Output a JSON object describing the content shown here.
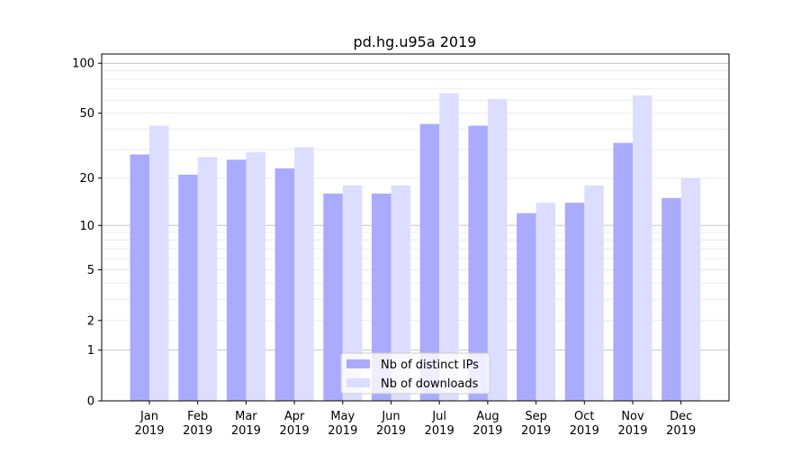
{
  "chart_data": {
    "type": "bar",
    "title": "pd.hg.u95a 2019",
    "xlabel": "",
    "ylabel": "",
    "yscale": "log(value+1)",
    "ylim": [
      0,
      110
    ],
    "yticks": [
      0,
      1,
      2,
      5,
      10,
      20,
      50,
      100
    ],
    "grid": true,
    "legend_position": "bottom-center",
    "categories": [
      "Jan\n2019",
      "Feb\n2019",
      "Mar\n2019",
      "Apr\n2019",
      "May\n2019",
      "Jun\n2019",
      "Jul\n2019",
      "Aug\n2019",
      "Sep\n2019",
      "Oct\n2019",
      "Nov\n2019",
      "Dec\n2019"
    ],
    "series": [
      {
        "name": "Nb of distinct IPs",
        "color": "#aaaaff",
        "values": [
          28,
          21,
          26,
          23,
          16,
          16,
          43,
          42,
          12,
          14,
          33,
          15
        ]
      },
      {
        "name": "Nb of downloads",
        "color": "#ddddff",
        "values": [
          42,
          27,
          29,
          31,
          18,
          18,
          66,
          61,
          14,
          18,
          64,
          20
        ]
      }
    ]
  }
}
